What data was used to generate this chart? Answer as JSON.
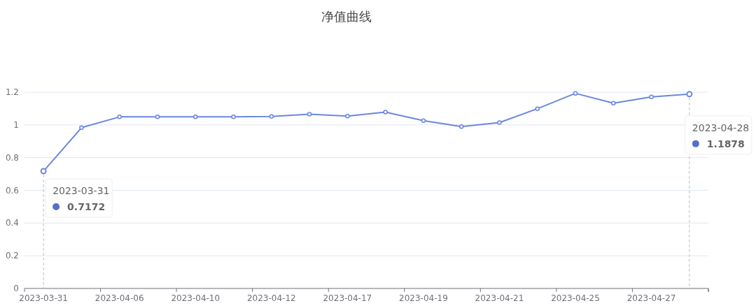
{
  "chart_data": {
    "type": "line",
    "title": "净值曲线",
    "categories": [
      "2023-03-31",
      null,
      "2023-04-06",
      null,
      "2023-04-10",
      null,
      "2023-04-12",
      null,
      "2023-04-17",
      null,
      "2023-04-19",
      null,
      "2023-04-21",
      null,
      "2023-04-25",
      null,
      "2023-04-27",
      null
    ],
    "series": [
      {
        "color": "#6a87e0",
        "values": [
          0.7172,
          0.983,
          1.049,
          1.049,
          1.049,
          1.049,
          1.052,
          1.065,
          1.054,
          1.078,
          1.026,
          0.99,
          1.014,
          1.099,
          1.193,
          1.133,
          1.171,
          1.1878
        ]
      }
    ],
    "ylim": [
      0,
      1.2
    ],
    "yticks": [
      0,
      0.2,
      0.4,
      0.6,
      0.8,
      1,
      1.2
    ],
    "grid": "y",
    "marker": "circle",
    "annotations": [
      "2023-03-31",
      "0.7172",
      "2023-04-28",
      "1.1878"
    ]
  }
}
